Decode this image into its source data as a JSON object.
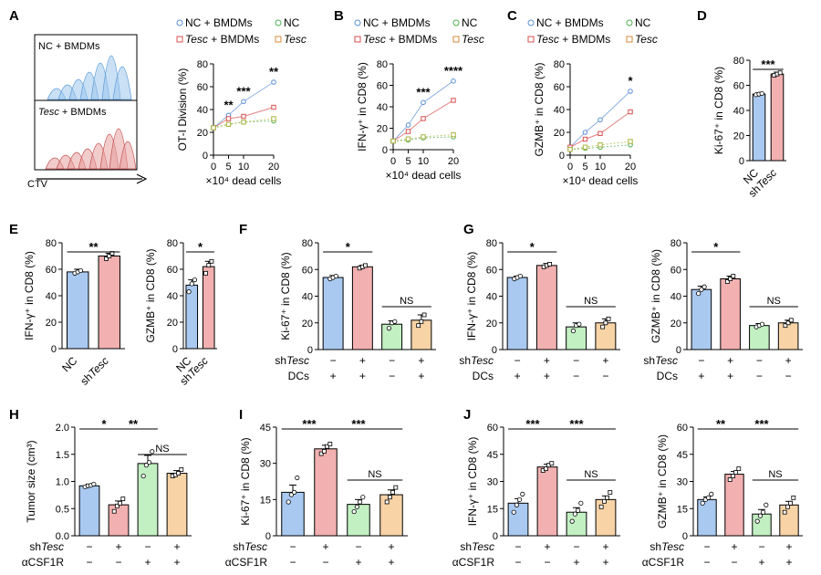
{
  "colors": {
    "blue": "#a9c9f0",
    "blue_line": "#5a8fd6",
    "red": "#f2b0b0",
    "red_line": "#d94f4f",
    "green": "#c2f0c2",
    "green_line": "#4caf50",
    "orange": "#f7d3a6",
    "orange_line": "#d68a3a",
    "olive": "#a8b23a"
  },
  "legend_labels": {
    "nc_bmdm": "NC + BMDMs",
    "nc": "NC",
    "tesc_bmdm_italic": "Tesc",
    "tesc_bmdm_rest": " + BMDMs",
    "tesc": "Tesc"
  },
  "row_labels": {
    "shtesc_prefix": "sh",
    "shtesc_italic": "Tesc",
    "dcs": "DCs",
    "acsf1r": "αCSF1R"
  },
  "panel_a_hist": {
    "top_label": "NC + BMDMs",
    "bottom_label_italic": "Tesc",
    "bottom_label_rest": " + BMDMs",
    "axis_label": "CTV"
  },
  "chart_data": [
    {
      "panel": "A",
      "type": "line",
      "ylabel": "OT-I Division (%)",
      "xlabel": "×10⁴ dead cells",
      "x": [
        0,
        5,
        10,
        20
      ],
      "xlim": [
        0,
        20
      ],
      "ylim": [
        0,
        80
      ],
      "yticks": [
        0,
        20,
        40,
        60,
        80
      ],
      "series": [
        {
          "name": "NC + BMDMs",
          "values": [
            24,
            35,
            47,
            64
          ]
        },
        {
          "name": "Tesc + BMDMs",
          "values": [
            24,
            32,
            34,
            42
          ]
        },
        {
          "name": "NC",
          "values": [
            24,
            27,
            29,
            30
          ]
        },
        {
          "name": "Tesc",
          "values": [
            24,
            27,
            29,
            32
          ]
        }
      ],
      "annotations": [
        {
          "x": 5,
          "text": "**"
        },
        {
          "x": 10,
          "text": "***"
        },
        {
          "x": 20,
          "text": "**"
        }
      ]
    },
    {
      "panel": "B",
      "type": "line",
      "ylabel": "IFN-γ⁺ in CD8 (%)",
      "xlabel": "×10⁴ dead cells",
      "x": [
        0,
        5,
        10,
        20
      ],
      "xlim": [
        0,
        20
      ],
      "ylim": [
        0,
        80
      ],
      "yticks": [
        0,
        20,
        40,
        60,
        80
      ],
      "series": [
        {
          "name": "NC + BMDMs",
          "values": [
            8,
            23,
            44,
            64
          ]
        },
        {
          "name": "Tesc + BMDMs",
          "values": [
            8,
            17,
            29,
            46
          ]
        },
        {
          "name": "NC",
          "values": [
            8,
            9,
            11,
            12
          ]
        },
        {
          "name": "Tesc",
          "values": [
            8,
            10,
            12,
            14
          ]
        }
      ],
      "annotations": [
        {
          "x": 10,
          "text": "***"
        },
        {
          "x": 20,
          "text": "****"
        }
      ]
    },
    {
      "panel": "C",
      "type": "line",
      "ylabel": "GZMB⁺ in CD8 (%)",
      "xlabel": "×10⁴ dead cells",
      "x": [
        0,
        5,
        10,
        20
      ],
      "xlim": [
        0,
        20
      ],
      "ylim": [
        0,
        80
      ],
      "yticks": [
        0,
        20,
        40,
        60,
        80
      ],
      "series": [
        {
          "name": "NC + BMDMs",
          "values": [
            7,
            20,
            31,
            56
          ]
        },
        {
          "name": "Tesc + BMDMs",
          "values": [
            7,
            14,
            19,
            38
          ]
        },
        {
          "name": "NC",
          "values": [
            5,
            6,
            7,
            9
          ]
        },
        {
          "name": "Tesc",
          "values": [
            5,
            7,
            9,
            12
          ]
        }
      ],
      "annotations": [
        {
          "x": 20,
          "text": "*"
        }
      ]
    },
    {
      "panel": "D",
      "type": "bar",
      "ylabel": "Ki-67⁺ in CD8 (%)",
      "ylim": [
        0,
        80
      ],
      "yticks": [
        0,
        20,
        40,
        60,
        80
      ],
      "values": [
        53,
        69
      ],
      "errors": [
        1,
        1.5
      ],
      "points": [
        [
          52.5,
          53,
          53.5
        ],
        [
          68,
          69,
          70
        ]
      ],
      "annotations": [
        {
          "from": 0,
          "to": 1,
          "text": "***"
        }
      ]
    },
    {
      "panel": "E1",
      "type": "bar",
      "ylabel": "IFN-γ⁺ in CD8 (%)",
      "ylim": [
        0,
        80
      ],
      "yticks": [
        0,
        20,
        40,
        60,
        80
      ],
      "values": [
        58,
        70
      ],
      "errors": [
        2,
        2
      ],
      "points": [
        [
          57,
          58,
          59
        ],
        [
          68,
          70,
          72
        ]
      ],
      "annotations": [
        {
          "from": 0,
          "to": 1,
          "text": "**"
        }
      ]
    },
    {
      "panel": "E2",
      "type": "bar",
      "ylabel": "GZMB⁺ in CD8 (%)",
      "ylim": [
        0,
        80
      ],
      "yticks": [
        0,
        20,
        40,
        60,
        80
      ],
      "values": [
        48,
        62
      ],
      "errors": [
        4,
        4
      ],
      "points": [
        [
          43,
          49,
          52
        ],
        [
          57,
          63,
          66
        ]
      ],
      "annotations": [
        {
          "from": 0,
          "to": 1,
          "text": "*"
        }
      ]
    },
    {
      "panel": "F",
      "type": "bar",
      "ylabel": "Ki-67⁺ in CD8 (%)",
      "ylim": [
        0,
        80
      ],
      "yticks": [
        0,
        20,
        40,
        60,
        80
      ],
      "values": [
        54,
        62,
        19,
        22
      ],
      "errors": [
        1.5,
        1,
        2.5,
        4
      ],
      "points": [
        [
          53,
          54,
          55
        ],
        [
          61,
          62,
          63
        ],
        [
          16,
          20,
          21
        ],
        [
          18,
          21,
          26
        ]
      ],
      "rows": [
        [
          "−",
          "+",
          "−",
          "+"
        ],
        [
          "+",
          "+",
          "−",
          "+"
        ]
      ],
      "annotations": [
        {
          "from": 0,
          "to": 1,
          "text": "*"
        },
        {
          "from": 2,
          "to": 3,
          "text": "NS"
        }
      ]
    },
    {
      "panel": "G1",
      "type": "bar",
      "ylabel": "IFN-γ⁺ in CD8 (%)",
      "ylim": [
        0,
        80
      ],
      "yticks": [
        0,
        20,
        40,
        60,
        80
      ],
      "values": [
        54,
        63,
        17,
        20
      ],
      "errors": [
        1,
        1.5,
        3,
        3
      ],
      "points": [
        [
          53,
          54,
          55
        ],
        [
          62,
          63,
          64
        ],
        [
          14,
          18,
          19
        ],
        [
          17,
          20,
          23
        ]
      ],
      "rows": [
        [
          "−",
          "+",
          "−",
          "+"
        ],
        [
          "+",
          "+",
          "−",
          "−"
        ]
      ],
      "annotations": [
        {
          "from": 0,
          "to": 1,
          "text": "*"
        },
        {
          "from": 2,
          "to": 3,
          "text": "NS"
        }
      ]
    },
    {
      "panel": "G2",
      "type": "bar",
      "ylabel": "GZMB⁺ in CD8 (%)",
      "ylim": [
        0,
        80
      ],
      "yticks": [
        0,
        20,
        40,
        60,
        80
      ],
      "values": [
        45,
        53,
        18,
        20
      ],
      "errors": [
        2.5,
        2,
        1.5,
        2
      ],
      "points": [
        [
          42,
          45,
          47
        ],
        [
          51,
          53,
          55
        ],
        [
          17,
          18,
          19
        ],
        [
          18,
          20,
          22
        ]
      ],
      "rows": [
        [
          "−",
          "+",
          "−",
          "+"
        ],
        [
          "+",
          "+",
          "−",
          "−"
        ]
      ],
      "annotations": [
        {
          "from": 0,
          "to": 1,
          "text": "*"
        },
        {
          "from": 2,
          "to": 3,
          "text": "NS"
        }
      ]
    },
    {
      "panel": "H",
      "type": "bar",
      "ylabel": "Tumor size (cm³)",
      "ylim": [
        0,
        2.0
      ],
      "yticks": [
        0.0,
        0.5,
        1.0,
        1.5,
        2.0
      ],
      "values": [
        0.92,
        0.57,
        1.33,
        1.15
      ],
      "errors": [
        0.03,
        0.07,
        0.15,
        0.05
      ],
      "points": [
        [
          0.9,
          0.92,
          0.93,
          0.95
        ],
        [
          0.45,
          0.55,
          0.6,
          0.68
        ],
        [
          1.1,
          1.3,
          1.35,
          1.55
        ],
        [
          1.1,
          1.12,
          1.15,
          1.22
        ]
      ],
      "rows": [
        [
          "−",
          "+",
          "−",
          "+"
        ],
        [
          "−",
          "−",
          "+",
          "+"
        ]
      ],
      "annotations": [
        {
          "from": 0,
          "to": 1,
          "text": "*"
        },
        {
          "from": 1,
          "to": 2,
          "text": "**"
        },
        {
          "from": 2,
          "to": 3,
          "text": "NS"
        }
      ]
    },
    {
      "panel": "I",
      "type": "bar",
      "ylabel": "Ki-67⁺ in CD8 (%)",
      "ylim": [
        0,
        45
      ],
      "yticks": [
        0,
        15,
        30,
        45
      ],
      "values": [
        18,
        36,
        13,
        17
      ],
      "errors": [
        3,
        1.5,
        2,
        2
      ],
      "points": [
        [
          14,
          17,
          18,
          24
        ],
        [
          34,
          35,
          37,
          38
        ],
        [
          10,
          12,
          14,
          16
        ],
        [
          14,
          16,
          18,
          20
        ]
      ],
      "rows": [
        [
          "−",
          "+",
          "−",
          "+"
        ],
        [
          "−",
          "−",
          "+",
          "+"
        ]
      ],
      "annotations": [
        {
          "from": 0,
          "to": 1,
          "text": "***"
        },
        {
          "from": 1,
          "to": 3,
          "text": "***"
        },
        {
          "from": 2,
          "to": 3,
          "text": "NS"
        }
      ]
    },
    {
      "panel": "J1",
      "type": "bar",
      "ylabel": "IFN-γ⁺ in CD8 (%)",
      "ylim": [
        0,
        60
      ],
      "yticks": [
        0,
        15,
        30,
        45,
        60
      ],
      "values": [
        18,
        38,
        13,
        20
      ],
      "errors": [
        2.5,
        1.5,
        2.5,
        2
      ],
      "points": [
        [
          13,
          17,
          20,
          23
        ],
        [
          36,
          37,
          39,
          40
        ],
        [
          8,
          12,
          14,
          18
        ],
        [
          16,
          19,
          21,
          24
        ]
      ],
      "rows": [
        [
          "−",
          "+",
          "−",
          "+"
        ],
        [
          "−",
          "−",
          "+",
          "+"
        ]
      ],
      "annotations": [
        {
          "from": 0,
          "to": 1,
          "text": "***"
        },
        {
          "from": 1,
          "to": 3,
          "text": "***"
        },
        {
          "from": 2,
          "to": 3,
          "text": "NS"
        }
      ]
    },
    {
      "panel": "J2",
      "type": "bar",
      "ylabel": "GZMB⁺ in CD8 (%)",
      "ylim": [
        0,
        60
      ],
      "yticks": [
        0,
        15,
        30,
        45,
        60
      ],
      "values": [
        20,
        34,
        12,
        17
      ],
      "errors": [
        1.5,
        1.5,
        2.5,
        2
      ],
      "points": [
        [
          18,
          20,
          21,
          23
        ],
        [
          31,
          33,
          35,
          37
        ],
        [
          8,
          11,
          13,
          17
        ],
        [
          13,
          16,
          18,
          21
        ]
      ],
      "rows": [
        [
          "−",
          "+",
          "−",
          "+"
        ],
        [
          "−",
          "−",
          "+",
          "+"
        ]
      ],
      "annotations": [
        {
          "from": 0,
          "to": 1,
          "text": "**"
        },
        {
          "from": 1,
          "to": 3,
          "text": "***"
        },
        {
          "from": 2,
          "to": 3,
          "text": "NS"
        }
      ]
    }
  ]
}
